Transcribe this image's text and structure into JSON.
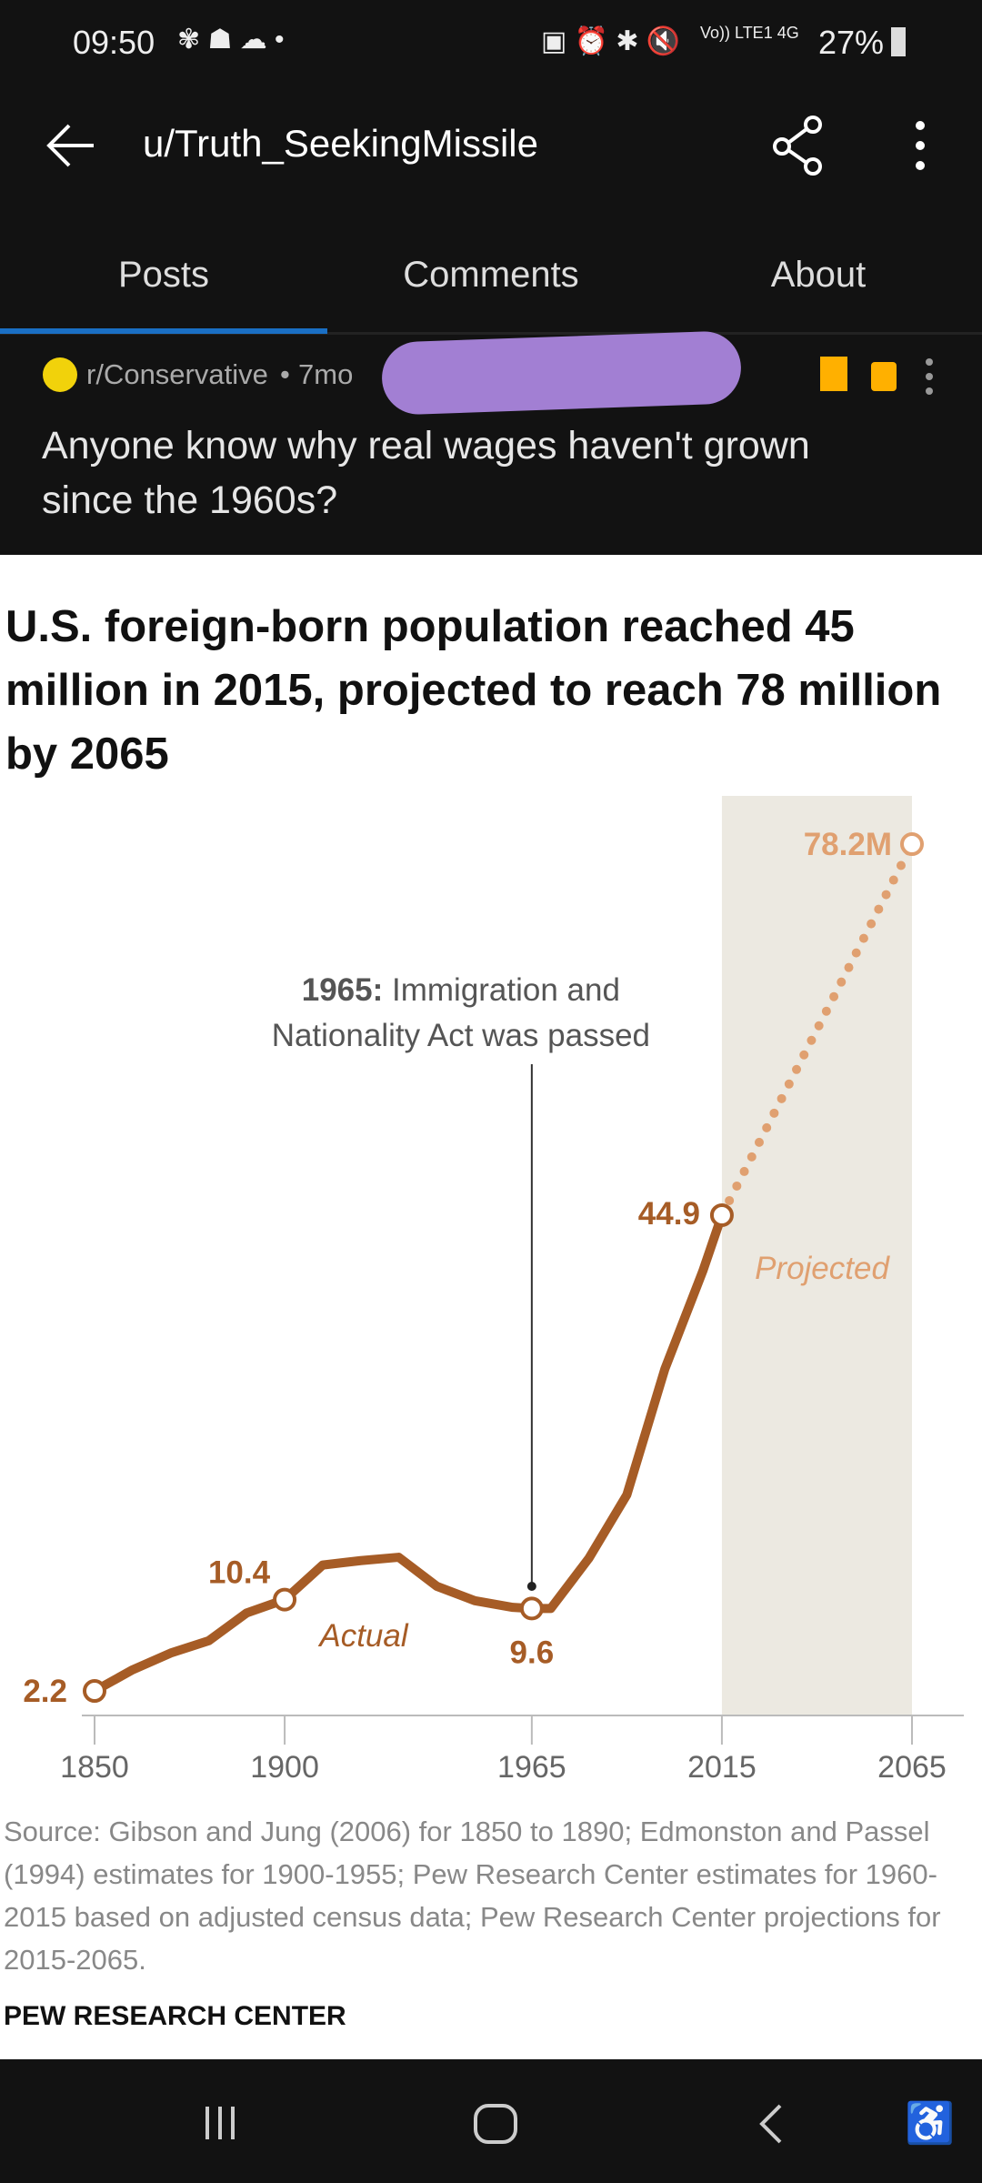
{
  "status_bar": {
    "time": "09:50",
    "network": "Vo)) LTE1 4G",
    "battery": "27%"
  },
  "header": {
    "title": "u/Truth_SeekingMissile"
  },
  "tabs": [
    {
      "label": "Posts",
      "active": true
    },
    {
      "label": "Comments"
    },
    {
      "label": "About"
    }
  ],
  "post": {
    "subreddit": "r/Conservative",
    "age": "7mo",
    "title": "Anyone know why real wages haven't grown since the 1960s?",
    "accent": "#ffb000",
    "redaction_color": "#a27fd3"
  },
  "chart_data": {
    "type": "line",
    "title": "U.S. foreign-born population reached 45 million in 2015, projected to reach 78 million by 2065",
    "xlabel": "",
    "ylabel": "",
    "x_ticks": [
      "1850",
      "1900",
      "1965",
      "2015",
      "2065"
    ],
    "xlim": [
      1850,
      2065
    ],
    "ylim": [
      0,
      80
    ],
    "grid": false,
    "series": [
      {
        "name": "Actual",
        "color": "#a65c26",
        "x": [
          1850,
          1860,
          1870,
          1880,
          1890,
          1900,
          1910,
          1920,
          1930,
          1940,
          1950,
          1960,
          1965,
          1970,
          1980,
          1990,
          2000,
          2010,
          2015
        ],
        "values": [
          2.2,
          4.1,
          5.6,
          6.7,
          9.2,
          10.4,
          13.5,
          13.9,
          14.2,
          11.6,
          10.3,
          9.7,
          9.6,
          9.6,
          14.1,
          19.8,
          31.1,
          39.9,
          44.9
        ]
      },
      {
        "name": "Projected",
        "color": "#e0a070",
        "x": [
          2015,
          2065
        ],
        "values": [
          44.9,
          78.2
        ]
      }
    ],
    "data_labels": [
      {
        "x": 1850,
        "label": "2.2"
      },
      {
        "x": 1900,
        "label": "10.4"
      },
      {
        "x": 1965,
        "label": "9.6"
      },
      {
        "x": 2015,
        "label": "44.9"
      },
      {
        "x": 2065,
        "label": "78.2M"
      }
    ],
    "shaded_region": {
      "from": 2015,
      "to": 2065,
      "color": "#ece9e1"
    },
    "annotation": {
      "x": 1965,
      "bold": "1965:",
      "line1": " Immigration and",
      "line2": "Nationality Act was passed"
    },
    "source": "Source: Gibson and Jung (2006) for 1850 to 1890; Edmonston and Passel (1994) estimates for 1900-1955; Pew Research Center estimates for 1960-2015 based on adjusted census data; Pew Research Center projections for 2015-2065.",
    "credit": "PEW RESEARCH CENTER"
  }
}
